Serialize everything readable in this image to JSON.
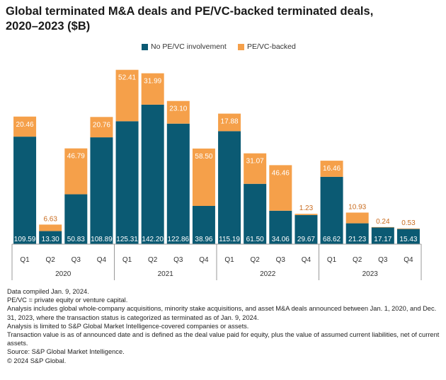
{
  "title_line1": "Global terminated M&A deals and PE/VC-backed terminated deals,",
  "title_line2": "2020–2023 ($B)",
  "colors": {
    "no_pe": "#0b5a73",
    "pe": "#f5a04a",
    "pe_label": "#c96b1e",
    "axis": "#999999"
  },
  "chart_data": {
    "type": "bar",
    "stacked": true,
    "categories": [
      "Q1",
      "Q2",
      "Q3",
      "Q4",
      "Q1",
      "Q2",
      "Q3",
      "Q4",
      "Q1",
      "Q2",
      "Q3",
      "Q4",
      "Q1",
      "Q2",
      "Q3",
      "Q4"
    ],
    "groups": [
      {
        "label": "2020",
        "count": 4
      },
      {
        "label": "2021",
        "count": 4
      },
      {
        "label": "2022",
        "count": 4
      },
      {
        "label": "2023",
        "count": 4
      }
    ],
    "series": [
      {
        "name": "No PE/VC involvement",
        "values": [
          109.59,
          13.3,
          50.83,
          108.89,
          125.31,
          142.2,
          122.86,
          38.96,
          115.19,
          61.5,
          34.06,
          29.67,
          68.62,
          21.23,
          17.17,
          15.43
        ]
      },
      {
        "name": "PE/VC-backed",
        "values": [
          20.46,
          6.63,
          46.79,
          20.76,
          52.41,
          31.99,
          23.1,
          58.5,
          17.88,
          31.07,
          46.46,
          1.23,
          16.46,
          10.93,
          0.24,
          0.53
        ]
      }
    ],
    "labels": {
      "no_pe": [
        "109.59",
        "13.30",
        "50.83",
        "108.89",
        "125.31",
        "142.20",
        "122.86",
        "38.96",
        "115.19",
        "61.50",
        "34.06",
        "29.67",
        "68.62",
        "21.23",
        "17.17",
        "15.43"
      ],
      "pe": [
        "20.46",
        "6.63",
        "46.79",
        "20.76",
        "52.41",
        "31.99",
        "23.10",
        "58.50",
        "17.88",
        "31.07",
        "46.46",
        "1.23",
        "16.46",
        "10.93",
        "0.24",
        "0.53"
      ]
    },
    "ylim": [
      0,
      180
    ],
    "legend_position": "top-center"
  },
  "notes": [
    "Data compiled Jan. 9, 2024.",
    "PE/VC = private equity or venture capital.",
    "Analysis includes global whole-company acquisitions, minority stake acquisitions, and asset M&A deals announced between Jan. 1, 2020, and Dec. 31, 2023, where the transaction status is categorized as terminated as of Jan. 9, 2024.",
    "Analysis is limited to S&P Global Market Intelligence-covered companies or assets.",
    "Transaction value is as of announced date and is defined as the deal value paid for equity, plus the value of assumed current liabilities, net of current assets.",
    "Source: S&P Global Market Intelligence.",
    "© 2024 S&P Global."
  ]
}
